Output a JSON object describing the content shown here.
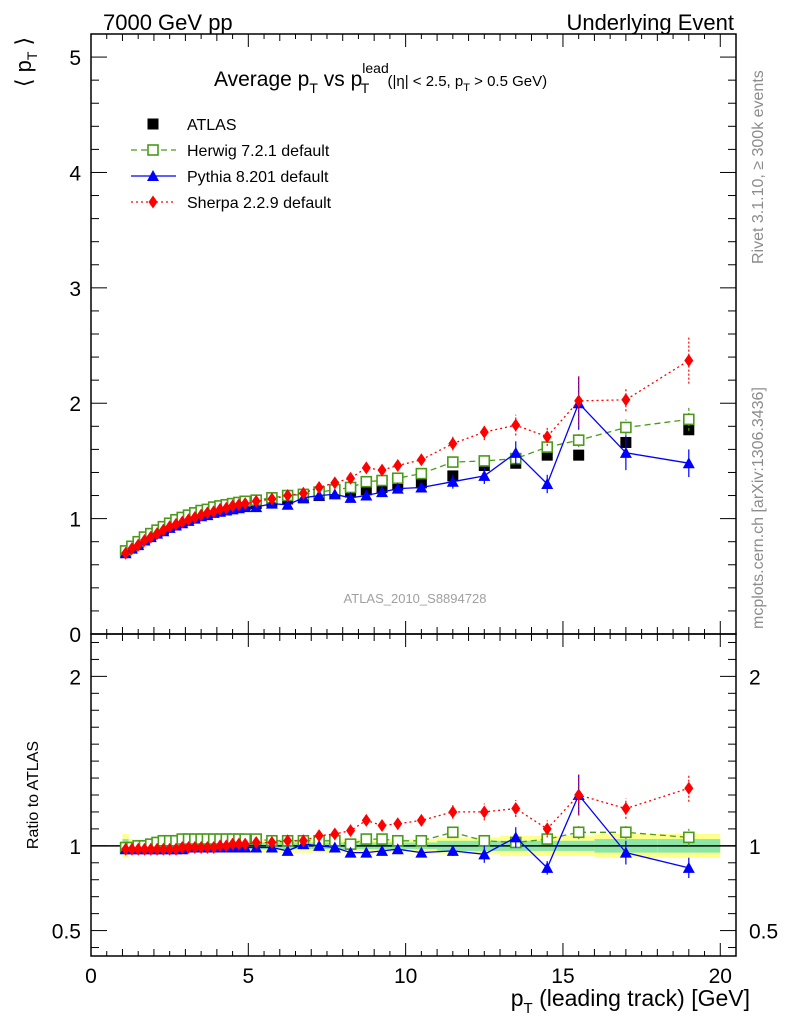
{
  "header": {
    "left": "7000 GeV pp",
    "right": "Underlying Event"
  },
  "side_labels": {
    "top": "Rivet 3.1.10, ≥ 300k events",
    "bottom": "mcplots.cern.ch [arXiv:1306.3436]"
  },
  "analysis_id": "ATLAS_2010_S8894728",
  "chart_data": [
    {
      "type": "scatter",
      "title": "Average p_T vs p_T^lead (|η| < 2.5, p_T > 0.5 GeV)",
      "title_parts": {
        "main1": "Average p",
        "sub1": "T",
        "main2": " vs p",
        "sub2": "T",
        "sup2": "lead",
        "cut_open": " (|η| < 2.5, p",
        "cut_sub": "T",
        "cut_close": " > 0.5 GeV)"
      },
      "ylabel": "⟨ p_T ⟩",
      "ylabel_parts": {
        "open": "⟨ p",
        "sub": "T",
        "close": " ⟩"
      },
      "xlim": [
        0,
        20.5
      ],
      "ylim": [
        0,
        5.2
      ],
      "xticks": [
        0,
        5,
        10,
        15,
        20
      ],
      "yticks": [
        0,
        1,
        2,
        3,
        4,
        5
      ],
      "ytick_labels": [
        "0",
        "1",
        "2",
        "3",
        "4",
        "5"
      ],
      "x": [
        1.1,
        1.3,
        1.5,
        1.7,
        1.9,
        2.1,
        2.3,
        2.5,
        2.7,
        2.9,
        3.1,
        3.3,
        3.5,
        3.7,
        3.9,
        4.1,
        4.3,
        4.5,
        4.7,
        4.9,
        5.25,
        5.75,
        6.25,
        6.75,
        7.25,
        7.75,
        8.25,
        8.75,
        9.25,
        9.75,
        10.5,
        11.5,
        12.5,
        13.5,
        14.5,
        15.5,
        17.0,
        19.0
      ],
      "series": [
        {
          "name": "ATLAS",
          "color": "#000000",
          "marker": "filled-square",
          "values": [
            0.72,
            0.76,
            0.79,
            0.83,
            0.86,
            0.89,
            0.91,
            0.94,
            0.96,
            0.98,
            1.0,
            1.02,
            1.04,
            1.05,
            1.07,
            1.08,
            1.09,
            1.1,
            1.11,
            1.12,
            1.13,
            1.15,
            1.17,
            1.18,
            1.2,
            1.22,
            1.23,
            1.25,
            1.27,
            1.29,
            1.31,
            1.37,
            1.46,
            1.48,
            1.55,
            1.55,
            1.66,
            1.77
          ]
        },
        {
          "name": "Herwig 7.2.1 default",
          "color": "#4a9a1a",
          "marker": "open-square",
          "line": "dashed",
          "values": [
            0.72,
            0.76,
            0.8,
            0.84,
            0.87,
            0.9,
            0.93,
            0.96,
            0.99,
            1.01,
            1.03,
            1.05,
            1.07,
            1.08,
            1.1,
            1.11,
            1.12,
            1.13,
            1.14,
            1.15,
            1.16,
            1.18,
            1.2,
            1.21,
            1.23,
            1.25,
            1.27,
            1.32,
            1.33,
            1.35,
            1.39,
            1.49,
            1.5,
            1.52,
            1.62,
            1.68,
            1.79,
            1.86
          ],
          "errors": [
            0,
            0,
            0,
            0,
            0,
            0,
            0,
            0,
            0,
            0,
            0,
            0,
            0,
            0,
            0,
            0,
            0,
            0,
            0,
            0,
            0,
            0,
            0,
            0,
            0,
            0,
            0,
            0.03,
            0.03,
            0.03,
            0.03,
            0.04,
            0.04,
            0.05,
            0.05,
            0.06,
            0.07,
            0.1
          ]
        },
        {
          "name": "Pythia 8.201 default",
          "color": "#0000ff",
          "marker": "filled-triangle",
          "line": "solid",
          "values": [
            0.7,
            0.74,
            0.77,
            0.81,
            0.84,
            0.87,
            0.89,
            0.92,
            0.94,
            0.96,
            0.98,
            1.0,
            1.02,
            1.03,
            1.05,
            1.06,
            1.07,
            1.08,
            1.09,
            1.1,
            1.1,
            1.13,
            1.12,
            1.18,
            1.2,
            1.21,
            1.18,
            1.2,
            1.23,
            1.26,
            1.27,
            1.32,
            1.37,
            1.57,
            1.3,
            2.0,
            1.57,
            1.48
          ],
          "errors": [
            0,
            0,
            0,
            0,
            0,
            0,
            0,
            0,
            0,
            0,
            0,
            0,
            0,
            0,
            0,
            0,
            0,
            0,
            0,
            0,
            0,
            0,
            0,
            0,
            0,
            0,
            0,
            0,
            0.02,
            0.03,
            0.03,
            0.06,
            0.07,
            0.1,
            0.08,
            0.23,
            0.15,
            0.12
          ]
        },
        {
          "name": "Sherpa 2.2.9 default",
          "color": "#ff0000",
          "marker": "filled-diamond",
          "line": "dotted",
          "values": [
            0.7,
            0.74,
            0.77,
            0.81,
            0.84,
            0.87,
            0.9,
            0.93,
            0.95,
            0.97,
            0.99,
            1.01,
            1.03,
            1.05,
            1.06,
            1.08,
            1.09,
            1.11,
            1.12,
            1.13,
            1.15,
            1.17,
            1.2,
            1.22,
            1.27,
            1.31,
            1.35,
            1.44,
            1.42,
            1.46,
            1.51,
            1.65,
            1.75,
            1.81,
            1.71,
            2.02,
            2.03,
            2.37
          ],
          "errors": [
            0,
            0,
            0,
            0,
            0,
            0,
            0,
            0,
            0,
            0,
            0,
            0,
            0,
            0,
            0,
            0,
            0,
            0,
            0,
            0,
            0,
            0,
            0,
            0,
            0.02,
            0.02,
            0.03,
            0.03,
            0.03,
            0.04,
            0.04,
            0.06,
            0.07,
            0.09,
            0.08,
            0.22,
            0.1,
            0.2
          ]
        }
      ]
    },
    {
      "type": "scatter",
      "ylabel": "Ratio to ATLAS",
      "xlabel": "p_T (leading track) [GeV]",
      "xlabel_parts": {
        "open": "p",
        "sub": "T",
        "close": " (leading track) [GeV]"
      },
      "xlim": [
        0,
        20.5
      ],
      "ylim": [
        0.35,
        2.25
      ],
      "xticks": [
        0,
        5,
        10,
        15,
        20
      ],
      "xtick_labels": [
        "0",
        "5",
        "10",
        "15",
        "20"
      ],
      "yticks": [
        0.5,
        1,
        2
      ],
      "ytick_labels": [
        "0.5",
        "1",
        "2"
      ],
      "reference_line": 1,
      "bands": {
        "x_edges": [
          1.0,
          1.2,
          1.4,
          1.6,
          1.8,
          2.0,
          2.2,
          2.4,
          2.6,
          2.8,
          3.0,
          3.2,
          3.4,
          3.6,
          3.8,
          4.0,
          4.2,
          4.4,
          4.6,
          4.8,
          5.0,
          5.5,
          6.0,
          6.5,
          7.0,
          7.5,
          8.0,
          8.5,
          9.0,
          9.5,
          10.0,
          11.0,
          12.0,
          13.0,
          14.0,
          15.0,
          16.0,
          18.0,
          20.0
        ],
        "inner_halfwidth": [
          0.04,
          0.02,
          0.02,
          0.02,
          0.02,
          0.02,
          0.02,
          0.02,
          0.02,
          0.02,
          0.02,
          0.02,
          0.02,
          0.02,
          0.02,
          0.02,
          0.02,
          0.02,
          0.02,
          0.02,
          0.02,
          0.02,
          0.02,
          0.02,
          0.02,
          0.02,
          0.02,
          0.02,
          0.02,
          0.02,
          0.02,
          0.03,
          0.03,
          0.03,
          0.03,
          0.03,
          0.04,
          0.04
        ],
        "outer_halfwidth": [
          0.07,
          0.04,
          0.04,
          0.04,
          0.04,
          0.04,
          0.04,
          0.04,
          0.04,
          0.04,
          0.04,
          0.04,
          0.04,
          0.04,
          0.04,
          0.04,
          0.04,
          0.04,
          0.04,
          0.04,
          0.04,
          0.04,
          0.04,
          0.04,
          0.04,
          0.04,
          0.04,
          0.04,
          0.04,
          0.04,
          0.04,
          0.05,
          0.05,
          0.06,
          0.06,
          0.06,
          0.07,
          0.07
        ],
        "inner_color": "#8ce6a6",
        "outer_color": "#ffff8c"
      },
      "x": [
        1.1,
        1.3,
        1.5,
        1.7,
        1.9,
        2.1,
        2.3,
        2.5,
        2.7,
        2.9,
        3.1,
        3.3,
        3.5,
        3.7,
        3.9,
        4.1,
        4.3,
        4.5,
        4.7,
        4.9,
        5.25,
        5.75,
        6.25,
        6.75,
        7.25,
        7.75,
        8.25,
        8.75,
        9.25,
        9.75,
        10.5,
        11.5,
        12.5,
        13.5,
        14.5,
        15.5,
        17.0,
        19.0
      ],
      "series": [
        {
          "name": "Herwig 7.2.1 default",
          "color": "#4a9a1a",
          "marker": "open-square",
          "line": "dashed",
          "values": [
            0.99,
            0.99,
            1.0,
            1.0,
            1.01,
            1.02,
            1.03,
            1.03,
            1.03,
            1.04,
            1.04,
            1.04,
            1.04,
            1.04,
            1.04,
            1.04,
            1.04,
            1.04,
            1.04,
            1.04,
            1.04,
            1.03,
            1.03,
            1.03,
            1.03,
            1.03,
            1.01,
            1.04,
            1.04,
            1.03,
            1.03,
            1.08,
            1.03,
            1.02,
            1.04,
            1.08,
            1.08,
            1.05
          ],
          "errors": [
            0,
            0,
            0,
            0,
            0,
            0,
            0,
            0,
            0,
            0,
            0,
            0,
            0,
            0,
            0,
            0,
            0,
            0,
            0,
            0,
            0,
            0,
            0,
            0,
            0,
            0,
            0,
            0.02,
            0.02,
            0.02,
            0.02,
            0.03,
            0.03,
            0.03,
            0.03,
            0.04,
            0.04,
            0.05
          ]
        },
        {
          "name": "Pythia 8.201 default",
          "color": "#0000ff",
          "marker": "filled-triangle",
          "line": "solid",
          "values": [
            0.98,
            0.98,
            0.98,
            0.98,
            0.98,
            0.98,
            0.98,
            0.98,
            0.98,
            0.98,
            0.99,
            0.99,
            0.99,
            0.99,
            0.99,
            0.99,
            0.99,
            0.99,
            0.99,
            0.99,
            0.99,
            0.99,
            0.97,
            1.01,
            1.0,
            0.99,
            0.96,
            0.96,
            0.97,
            0.98,
            0.96,
            0.97,
            0.95,
            1.05,
            0.87,
            1.3,
            0.96,
            0.87
          ],
          "errors": [
            0,
            0,
            0,
            0,
            0,
            0,
            0,
            0,
            0,
            0,
            0,
            0,
            0,
            0,
            0,
            0,
            0,
            0,
            0,
            0,
            0,
            0,
            0,
            0,
            0,
            0,
            0,
            0,
            0.02,
            0.02,
            0.02,
            0.03,
            0.05,
            0.06,
            0.04,
            0.12,
            0.07,
            0.06
          ]
        },
        {
          "name": "Sherpa 2.2.9 default",
          "color": "#ff0000",
          "marker": "filled-diamond",
          "line": "dotted",
          "values": [
            0.98,
            0.98,
            0.98,
            0.98,
            0.98,
            0.98,
            0.98,
            0.98,
            0.98,
            0.99,
            0.99,
            0.99,
            0.99,
            0.99,
            0.99,
            1.0,
            1.0,
            1.01,
            1.01,
            1.01,
            1.02,
            1.02,
            1.03,
            1.03,
            1.06,
            1.07,
            1.09,
            1.15,
            1.12,
            1.13,
            1.15,
            1.2,
            1.2,
            1.22,
            1.1,
            1.3,
            1.22,
            1.34
          ],
          "errors": [
            0,
            0,
            0,
            0,
            0,
            0,
            0,
            0,
            0,
            0,
            0,
            0,
            0,
            0,
            0,
            0,
            0,
            0,
            0,
            0,
            0,
            0,
            0,
            0,
            0.02,
            0.02,
            0.02,
            0.02,
            0.02,
            0.02,
            0.03,
            0.04,
            0.05,
            0.05,
            0.05,
            0.12,
            0.06,
            0.08
          ]
        }
      ]
    }
  ]
}
